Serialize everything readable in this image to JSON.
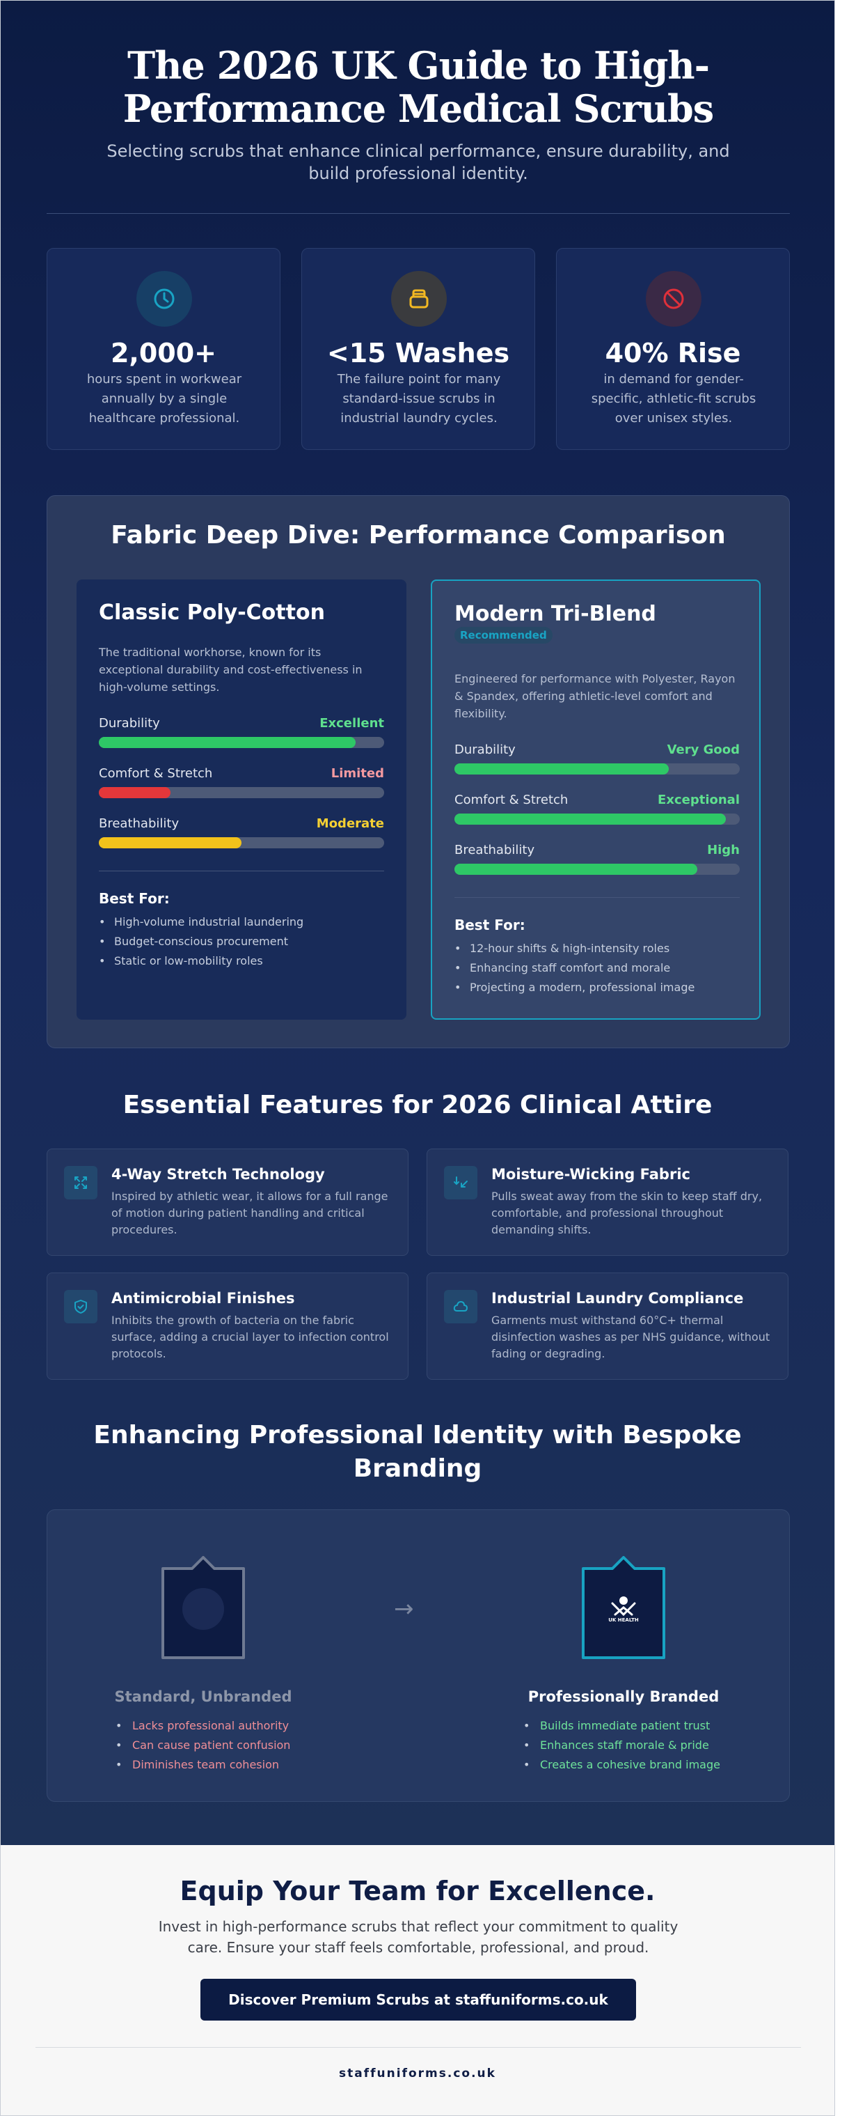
{
  "header": {
    "title": "The 2026 UK Guide to High-Performance Medical Scrubs",
    "subtitle": "Selecting scrubs that enhance clinical performance, ensure durability, and build professional identity."
  },
  "stats": [
    {
      "icon": "clock-icon",
      "value": "2,000+",
      "desc": "hours spent in workwear annually by a single healthcare professional.",
      "color": "#19a4c4"
    },
    {
      "icon": "laundry-icon",
      "value": "<15 Washes",
      "desc": "The failure point for many standard-issue scrubs in industrial laundry cycles.",
      "color": "#f2b822"
    },
    {
      "icon": "prohibited-icon",
      "value": "40% Rise",
      "desc": "in demand for gender-specific, athletic-fit scrubs over unisex styles.",
      "color": "#e0303a"
    }
  ],
  "fabric": {
    "heading": "Fabric Deep Dive: Performance Comparison",
    "cards": [
      {
        "title": "Classic Poly-Cotton",
        "intro": "The traditional workhorse, known for its exceptional durability and cost-effectiveness in high-volume settings.",
        "metrics": [
          {
            "label": "Durability",
            "rating": "Excellent",
            "level": 0.9,
            "color": "#2ec866",
            "rating_color": "#5fe08e"
          },
          {
            "label": "Comfort & Stretch",
            "rating": "Limited",
            "level": 0.25,
            "color": "#e3373a",
            "rating_color": "#f59aa0"
          },
          {
            "label": "Breathability",
            "rating": "Moderate",
            "level": 0.5,
            "color": "#f2c21b",
            "rating_color": "#f5d033"
          }
        ],
        "best_for_label": "Best For:",
        "best_for": [
          "High-volume industrial laundering",
          "Budget-conscious procurement",
          "Static or low-mobility roles"
        ]
      },
      {
        "title": "Modern Tri-Blend",
        "badge": "Recommended",
        "intro": "Engineered for performance with Polyester, Rayon & Spandex, offering athletic-level comfort and flexibility.",
        "metrics": [
          {
            "label": "Durability",
            "rating": "Very Good",
            "level": 0.75,
            "color": "#2ec866",
            "rating_color": "#5fe08e"
          },
          {
            "label": "Comfort & Stretch",
            "rating": "Exceptional",
            "level": 0.95,
            "color": "#2ec866",
            "rating_color": "#5fe08e"
          },
          {
            "label": "Breathability",
            "rating": "High",
            "level": 0.85,
            "color": "#2ec866",
            "rating_color": "#5fe08e"
          }
        ],
        "best_for_label": "Best For:",
        "best_for": [
          "12-hour shifts & high-intensity roles",
          "Enhancing staff comfort and morale",
          "Projecting a modern, professional image"
        ]
      }
    ]
  },
  "features": {
    "heading": "Essential Features for 2026 Clinical Attire",
    "items": [
      {
        "icon": "stretch-arrows-icon",
        "title": "4-Way Stretch Technology",
        "desc": "Inspired by athletic wear, it allows for a full range of motion during patient handling and critical procedures."
      },
      {
        "icon": "moisture-arrow-icon",
        "title": "Moisture-Wicking Fabric",
        "desc": "Pulls sweat away from the skin to keep staff dry, comfortable, and professional throughout demanding shifts."
      },
      {
        "icon": "shield-icon",
        "title": "Antimicrobial Finishes",
        "desc": "Inhibits the growth of bacteria on the fabric surface, adding a crucial layer to infection control protocols."
      },
      {
        "icon": "cloud-icon",
        "title": "Industrial Laundry Compliance",
        "desc": "Garments must withstand 60°C+ thermal disinfection washes as per NHS guidance, without fading or degrading."
      }
    ]
  },
  "branding": {
    "heading": "Enhancing Professional Identity with Bespoke Branding",
    "unbranded": {
      "label": "Standard, Unbranded",
      "points": [
        "Lacks professional authority",
        "Can cause patient confusion",
        "Diminishes team cohesion"
      ],
      "label_color": "#8d96a9",
      "point_color": "#f08f97"
    },
    "branded": {
      "label": "Professionally Branded",
      "logo_text": "UK HEALTH",
      "points": [
        "Builds immediate patient trust",
        "Enhances staff morale & pride",
        "Creates a cohesive brand image"
      ],
      "label_color": "#ffffff",
      "point_color": "#6fe39a"
    }
  },
  "cta": {
    "heading": "Equip Your Team for Excellence.",
    "text": "Invest in high-performance scrubs that reflect your commitment to quality care. Ensure your staff feels comfortable, professional, and proud.",
    "button": "Discover Premium Scrubs at staffuniforms.co.uk"
  },
  "footer": {
    "site": "staffuniforms.co.uk"
  }
}
